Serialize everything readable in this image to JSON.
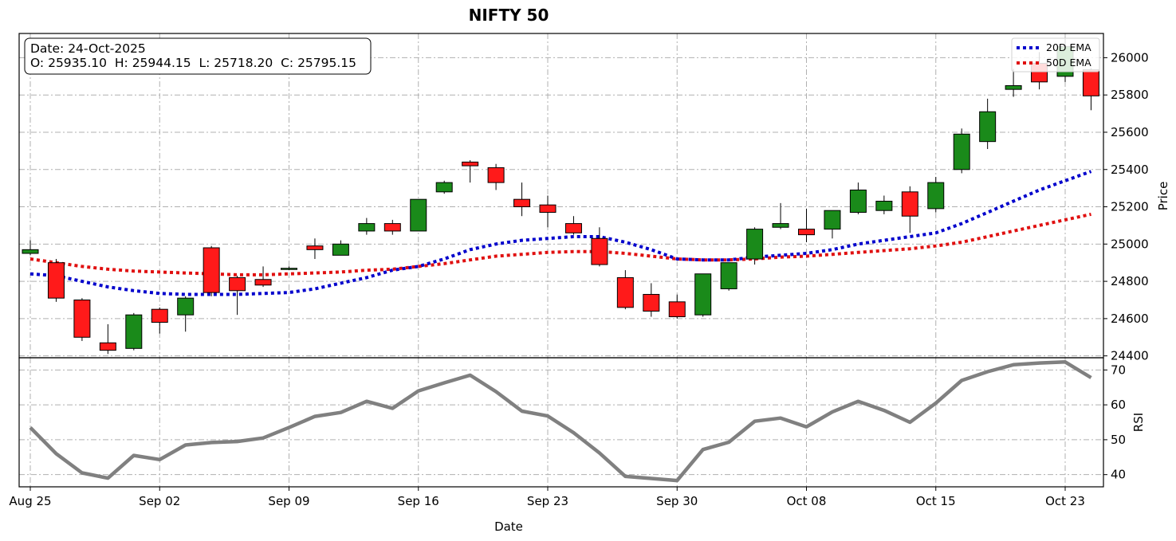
{
  "chart_data": {
    "type": "candlestick",
    "title": "NIFTY 50",
    "xlabel": "Date",
    "info_box": {
      "date_line": "Date: 24-Oct-2025",
      "ohlc_line": "O: 25935.10  H: 25944.15  L: 25718.20  C: 25795.15"
    },
    "x_ticks": [
      "Aug 25",
      "Sep 02",
      "Sep 09",
      "Sep 16",
      "Sep 23",
      "Sep 30",
      "Oct 08",
      "Oct 15",
      "Oct 23"
    ],
    "x_tick_positions": [
      0,
      5,
      10,
      15,
      20,
      25,
      30,
      35,
      40
    ],
    "grid": true,
    "price_panel": {
      "ylabel": "Price",
      "ylim": [
        24390,
        26130
      ],
      "yticks": [
        24400,
        24600,
        24800,
        25000,
        25200,
        25400,
        25600,
        25800,
        26000
      ],
      "legend": {
        "placement": "top-right",
        "entries": [
          {
            "name": "20D EMA",
            "color": "#0000cc"
          },
          {
            "name": "50D EMA",
            "color": "#e01010"
          }
        ]
      },
      "up_color": "#1a8a1a",
      "down_color": "#ff1a1a",
      "candles": [
        {
          "i": 0,
          "o": 24950,
          "h": 25020,
          "l": 24940,
          "c": 24970
        },
        {
          "i": 1,
          "o": 24900,
          "h": 24920,
          "l": 24690,
          "c": 24710
        },
        {
          "i": 2,
          "o": 24700,
          "h": 24710,
          "l": 24480,
          "c": 24500
        },
        {
          "i": 3,
          "o": 24470,
          "h": 24570,
          "l": 24410,
          "c": 24430
        },
        {
          "i": 4,
          "o": 24440,
          "h": 24630,
          "l": 24430,
          "c": 24620
        },
        {
          "i": 5,
          "o": 24650,
          "h": 24660,
          "l": 24520,
          "c": 24580
        },
        {
          "i": 6,
          "o": 24620,
          "h": 24720,
          "l": 24530,
          "c": 24710
        },
        {
          "i": 7,
          "o": 24980,
          "h": 24990,
          "l": 24720,
          "c": 24740
        },
        {
          "i": 8,
          "o": 24820,
          "h": 24830,
          "l": 24620,
          "c": 24750
        },
        {
          "i": 9,
          "o": 24810,
          "h": 24880,
          "l": 24770,
          "c": 24780
        },
        {
          "i": 10,
          "o": 24870,
          "h": 24880,
          "l": 24860,
          "c": 24870
        },
        {
          "i": 11,
          "o": 24990,
          "h": 25030,
          "l": 24920,
          "c": 24970
        },
        {
          "i": 12,
          "o": 24940,
          "h": 25020,
          "l": 24940,
          "c": 25000
        },
        {
          "i": 13,
          "o": 25070,
          "h": 25140,
          "l": 25050,
          "c": 25110
        },
        {
          "i": 14,
          "o": 25110,
          "h": 25130,
          "l": 25050,
          "c": 25070
        },
        {
          "i": 15,
          "o": 25070,
          "h": 25240,
          "l": 25070,
          "c": 25240
        },
        {
          "i": 16,
          "o": 25280,
          "h": 25340,
          "l": 25270,
          "c": 25330
        },
        {
          "i": 17,
          "o": 25440,
          "h": 25450,
          "l": 25330,
          "c": 25420
        },
        {
          "i": 18,
          "o": 25410,
          "h": 25430,
          "l": 25290,
          "c": 25330
        },
        {
          "i": 19,
          "o": 25240,
          "h": 25330,
          "l": 25150,
          "c": 25200
        },
        {
          "i": 20,
          "o": 25210,
          "h": 25260,
          "l": 25090,
          "c": 25170
        },
        {
          "i": 21,
          "o": 25110,
          "h": 25150,
          "l": 25050,
          "c": 25060
        },
        {
          "i": 22,
          "o": 25030,
          "h": 25090,
          "l": 24880,
          "c": 24890
        },
        {
          "i": 23,
          "o": 24820,
          "h": 24860,
          "l": 24650,
          "c": 24660
        },
        {
          "i": 24,
          "o": 24730,
          "h": 24790,
          "l": 24610,
          "c": 24640
        },
        {
          "i": 25,
          "o": 24690,
          "h": 24730,
          "l": 24600,
          "c": 24610
        },
        {
          "i": 26,
          "o": 24620,
          "h": 24840,
          "l": 24610,
          "c": 24840
        },
        {
          "i": 27,
          "o": 24760,
          "h": 24900,
          "l": 24750,
          "c": 24900
        },
        {
          "i": 28,
          "o": 24920,
          "h": 25090,
          "l": 24890,
          "c": 25080
        },
        {
          "i": 29,
          "o": 25090,
          "h": 25220,
          "l": 25080,
          "c": 25110
        },
        {
          "i": 30,
          "o": 25080,
          "h": 25190,
          "l": 25010,
          "c": 25050
        },
        {
          "i": 31,
          "o": 25080,
          "h": 25180,
          "l": 25030,
          "c": 25180
        },
        {
          "i": 32,
          "o": 25170,
          "h": 25330,
          "l": 25160,
          "c": 25290
        },
        {
          "i": 33,
          "o": 25180,
          "h": 25260,
          "l": 25160,
          "c": 25230
        },
        {
          "i": 34,
          "o": 25280,
          "h": 25310,
          "l": 25060,
          "c": 25150
        },
        {
          "i": 35,
          "o": 25190,
          "h": 25360,
          "l": 25170,
          "c": 25330
        },
        {
          "i": 36,
          "o": 25400,
          "h": 25620,
          "l": 25380,
          "c": 25590
        },
        {
          "i": 37,
          "o": 25550,
          "h": 25780,
          "l": 25510,
          "c": 25710
        },
        {
          "i": 38,
          "o": 25830,
          "h": 25940,
          "l": 25790,
          "c": 25850
        },
        {
          "i": 39,
          "o": 25970,
          "h": 26030,
          "l": 25830,
          "c": 25870
        },
        {
          "i": 40,
          "o": 25900,
          "h": 26100,
          "l": 25870,
          "c": 26060
        },
        {
          "i": 41,
          "o": 25935.1,
          "h": 25944.15,
          "l": 25718.2,
          "c": 25795.15
        }
      ],
      "ema20": [
        24840,
        24830,
        24800,
        24770,
        24750,
        24735,
        24730,
        24730,
        24730,
        24735,
        24740,
        24760,
        24790,
        24820,
        24860,
        24880,
        24920,
        24970,
        25000,
        25020,
        25030,
        25040,
        25040,
        25010,
        24970,
        24920,
        24915,
        24915,
        24930,
        24940,
        24950,
        24970,
        25000,
        25020,
        25040,
        25060,
        25110,
        25170,
        25230,
        25290,
        25340,
        25390
      ],
      "ema50": [
        24920,
        24900,
        24880,
        24865,
        24855,
        24850,
        24845,
        24840,
        24835,
        24835,
        24840,
        24845,
        24850,
        24860,
        24865,
        24880,
        24895,
        24915,
        24935,
        24945,
        24955,
        24960,
        24960,
        24950,
        24935,
        24920,
        24915,
        24915,
        24920,
        24930,
        24935,
        24945,
        24955,
        24965,
        24975,
        24990,
        25010,
        25040,
        25070,
        25100,
        25130,
        25160
      ]
    },
    "rsi_panel": {
      "ylabel": "RSI",
      "ylim": [
        36.5,
        73.5
      ],
      "yticks": [
        40,
        50,
        60,
        70
      ],
      "color": "#808080",
      "values": [
        53.5,
        46,
        40.5,
        39,
        45.5,
        44.3,
        48.5,
        49.2,
        49.5,
        50.5,
        53.5,
        56.7,
        57.8,
        61,
        59,
        64,
        66.3,
        68.5,
        63.8,
        58.2,
        56.8,
        52,
        46.2,
        39.5,
        38.9,
        38.3,
        47.2,
        49.3,
        55.3,
        56.2,
        53.7,
        58,
        61,
        58.4,
        55,
        60.5,
        67,
        69.5,
        71.5,
        72,
        72.3,
        67.8
      ]
    }
  }
}
